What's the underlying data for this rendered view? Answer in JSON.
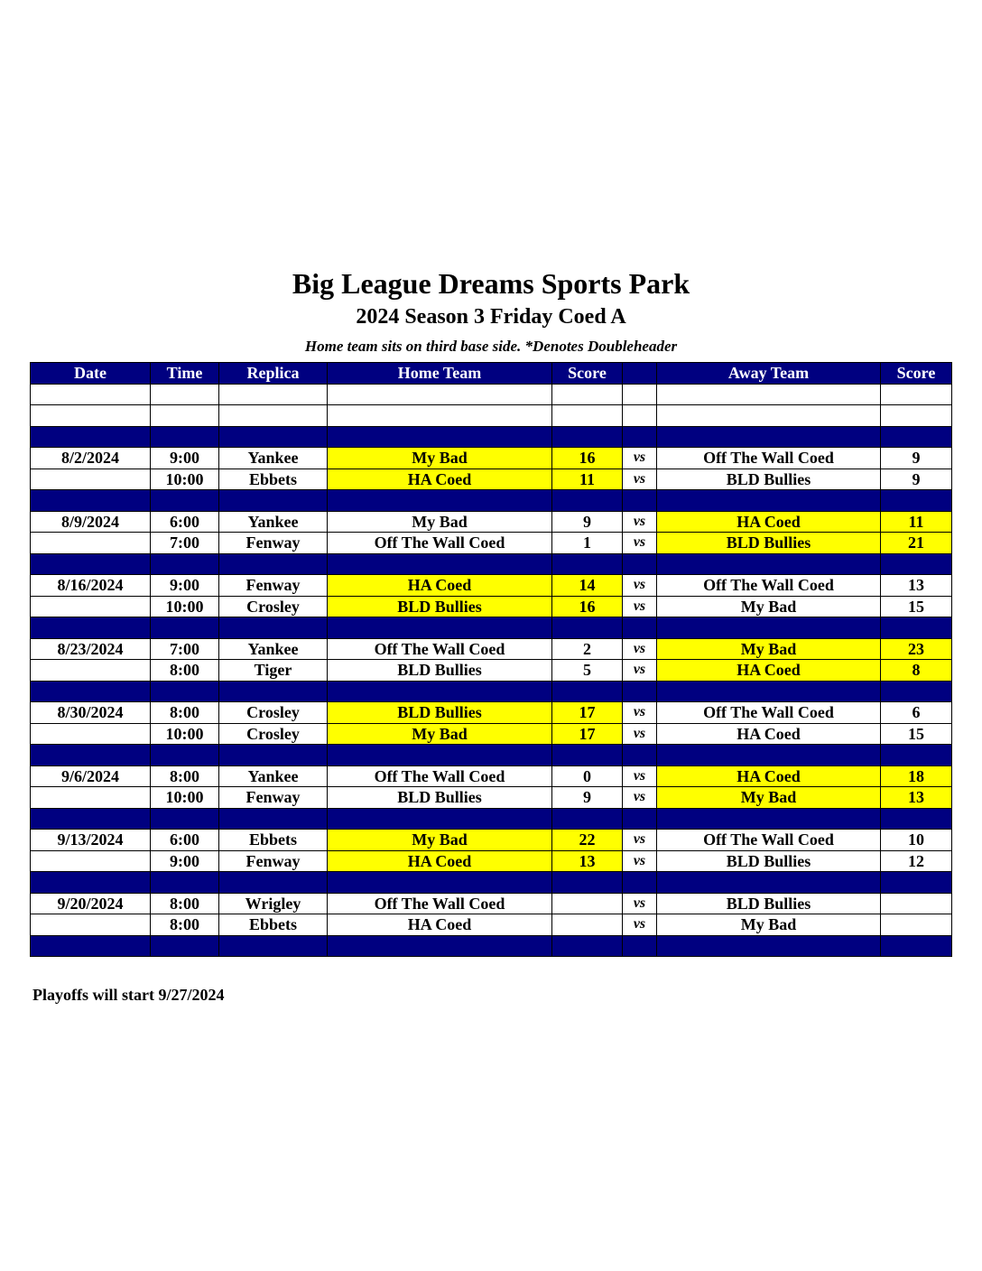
{
  "title": "Big League Dreams Sports Park",
  "subtitle": "2024 Season 3 Friday Coed A",
  "note": "Home team sits on third base side.  *Denotes Doubleheader",
  "colors": {
    "header_bg": "#000080",
    "header_text": "#ffffff",
    "winner_highlight": "#ffff00"
  },
  "headers": [
    "Date",
    "Time",
    "Replica",
    "Home Team",
    "Score",
    "",
    "Away Team",
    "Score"
  ],
  "vs_label": "vs",
  "weeks": [
    {
      "date": "8/2/2024",
      "games": [
        {
          "time": "9:00",
          "replica": "Yankee",
          "home": "My Bad",
          "home_score": "16",
          "away": "Off The Wall Coed",
          "away_score": "9",
          "winner": "home"
        },
        {
          "time": "10:00",
          "replica": "Ebbets",
          "home": "HA Coed",
          "home_score": "11",
          "away": "BLD Bullies",
          "away_score": "9",
          "winner": "home"
        }
      ]
    },
    {
      "date": "8/9/2024",
      "games": [
        {
          "time": "6:00",
          "replica": "Yankee",
          "home": "My Bad",
          "home_score": "9",
          "away": "HA Coed",
          "away_score": "11",
          "winner": "away"
        },
        {
          "time": "7:00",
          "replica": "Fenway",
          "home": "Off The Wall Coed",
          "home_score": "1",
          "away": "BLD Bullies",
          "away_score": "21",
          "winner": "away"
        }
      ]
    },
    {
      "date": "8/16/2024",
      "games": [
        {
          "time": "9:00",
          "replica": "Fenway",
          "home": "HA Coed",
          "home_score": "14",
          "away": "Off The Wall Coed",
          "away_score": "13",
          "winner": "home"
        },
        {
          "time": "10:00",
          "replica": "Crosley",
          "home": "BLD Bullies",
          "home_score": "16",
          "away": "My Bad",
          "away_score": "15",
          "winner": "home"
        }
      ]
    },
    {
      "date": "8/23/2024",
      "games": [
        {
          "time": "7:00",
          "replica": "Yankee",
          "home": "Off The Wall Coed",
          "home_score": "2",
          "away": "My Bad",
          "away_score": "23",
          "winner": "away"
        },
        {
          "time": "8:00",
          "replica": "Tiger",
          "home": "BLD Bullies",
          "home_score": "5",
          "away": "HA Coed",
          "away_score": "8",
          "winner": "away"
        }
      ]
    },
    {
      "date": "8/30/2024",
      "games": [
        {
          "time": "8:00",
          "replica": "Crosley",
          "home": "BLD Bullies",
          "home_score": "17",
          "away": "Off The Wall Coed",
          "away_score": "6",
          "winner": "home"
        },
        {
          "time": "10:00",
          "replica": "Crosley",
          "home": "My Bad",
          "home_score": "17",
          "away": "HA Coed",
          "away_score": "15",
          "winner": "home"
        }
      ]
    },
    {
      "date": "9/6/2024",
      "games": [
        {
          "time": "8:00",
          "replica": "Yankee",
          "home": "Off The Wall Coed",
          "home_score": "0",
          "away": "HA Coed",
          "away_score": "18",
          "winner": "away"
        },
        {
          "time": "10:00",
          "replica": "Fenway",
          "home": "BLD Bullies",
          "home_score": "9",
          "away": "My Bad",
          "away_score": "13",
          "winner": "away"
        }
      ]
    },
    {
      "date": "9/13/2024",
      "games": [
        {
          "time": "6:00",
          "replica": "Ebbets",
          "home": "My Bad",
          "home_score": "22",
          "away": "Off The Wall Coed",
          "away_score": "10",
          "winner": "home"
        },
        {
          "time": "9:00",
          "replica": "Fenway",
          "home": "HA Coed",
          "home_score": "13",
          "away": "BLD Bullies",
          "away_score": "12",
          "winner": "home"
        }
      ]
    },
    {
      "date": "9/20/2024",
      "games": [
        {
          "time": "8:00",
          "replica": "Wrigley",
          "home": "Off The Wall Coed",
          "home_score": "",
          "away": "BLD Bullies",
          "away_score": "",
          "winner": ""
        },
        {
          "time": "8:00",
          "replica": "Ebbets",
          "home": "HA Coed",
          "home_score": "",
          "away": "My Bad",
          "away_score": "",
          "winner": ""
        }
      ]
    }
  ],
  "footer": "Playoffs will start 9/27/2024"
}
